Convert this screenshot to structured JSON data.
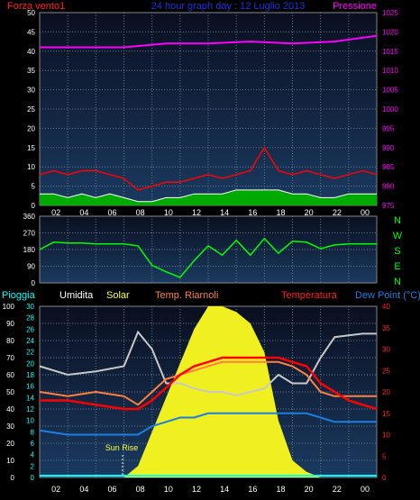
{
  "wind_panel": {
    "title_left": "Forza vento1",
    "title_center": "24 hour graph day : 12 Luglio 2013",
    "title_right": "Pressione"
  },
  "dir_panel": {
    "compass": [
      "N",
      "W",
      "S",
      "E",
      "N"
    ]
  },
  "weather_panel": {
    "legend": [
      "Pioggia",
      "Umidita",
      "Solar",
      "Temp. Riarnoli",
      "Temperatura",
      "Dew Point (°C)"
    ],
    "sunrise_label": "Sun Rise"
  },
  "x_ticks": [
    "02",
    "04",
    "06",
    "08",
    "10",
    "12",
    "14",
    "16",
    "18",
    "20",
    "22",
    "00"
  ],
  "colors": {
    "wind_avg": "#ffffff",
    "wind_gust": "#ff0000",
    "wind_fill": "#00aa00",
    "pressure": "#ff00ff",
    "direction": "#00ff00",
    "humidity": "#c8c8c8",
    "solar": "#f0f020",
    "temp_riarnoli": "#ff8040",
    "temperature": "#ff0000",
    "dew_point": "#1e7ee0",
    "rain": "#00ffff"
  },
  "chart_data": [
    {
      "type": "line",
      "name": "wind-pressure",
      "x_range": [
        0,
        24
      ],
      "y_left": {
        "range": [
          0,
          50
        ],
        "ticks": [
          "0",
          "5",
          "10",
          "15",
          "20",
          "25",
          "30",
          "35",
          "40",
          "45",
          "50"
        ]
      },
      "y_right": {
        "range": [
          975,
          1025
        ],
        "ticks": [
          "975",
          "980",
          "985",
          "990",
          "995",
          "1000",
          "1005",
          "1010",
          "1015",
          "1020",
          "1025"
        ]
      },
      "series": [
        {
          "x": [
            0,
            3,
            6,
            9,
            12,
            15,
            18,
            21,
            24
          ],
          "values": [
            1016,
            1016,
            1016,
            1017,
            1017,
            1017.5,
            1017,
            1017.5,
            1019
          ]
        },
        {
          "x": [
            0,
            1,
            2,
            3,
            4,
            5,
            6,
            7,
            8,
            9,
            10,
            11,
            12,
            13,
            14,
            15,
            16,
            17,
            18,
            19,
            20,
            21,
            22,
            23,
            24
          ],
          "values": [
            3,
            3,
            2,
            3,
            2,
            3,
            2,
            1,
            1,
            2,
            2,
            3,
            3,
            3,
            4,
            4,
            4,
            4,
            3,
            3,
            2,
            2,
            3,
            3,
            3
          ]
        },
        {
          "x": [
            0,
            1,
            2,
            3,
            4,
            5,
            6,
            7,
            8,
            9,
            10,
            11,
            12,
            13,
            14,
            15,
            16,
            17,
            18,
            19,
            20,
            21,
            22,
            23,
            24
          ],
          "values": [
            8,
            9,
            8,
            9,
            9,
            8,
            7,
            4,
            5,
            6,
            6,
            7,
            8,
            7,
            8,
            9,
            15,
            9,
            8,
            9,
            8,
            7,
            8,
            9,
            8
          ]
        }
      ]
    },
    {
      "type": "line",
      "name": "wind-direction",
      "x_range": [
        0,
        24
      ],
      "y_left": {
        "range": [
          0,
          360
        ],
        "ticks": [
          "0",
          "90",
          "180",
          "270",
          "360"
        ]
      },
      "series": [
        {
          "x": [
            0,
            1,
            2,
            3,
            4,
            5,
            6,
            7,
            8,
            9,
            10,
            11,
            12,
            13,
            14,
            15,
            16,
            17,
            18,
            19,
            20,
            21,
            22,
            23,
            24
          ],
          "values": [
            180,
            220,
            215,
            215,
            210,
            210,
            210,
            200,
            95,
            60,
            30,
            120,
            200,
            150,
            230,
            150,
            240,
            160,
            225,
            220,
            185,
            205,
            210,
            210,
            210
          ]
        }
      ]
    },
    {
      "type": "line",
      "name": "weather",
      "x_range": [
        0,
        24
      ],
      "y_left_outer": {
        "range": [
          0,
          100
        ],
        "ticks": [
          "0",
          "10",
          "20",
          "30",
          "40",
          "50",
          "60",
          "70",
          "80",
          "90",
          "100"
        ]
      },
      "y_left_inner": {
        "range": [
          0,
          30
        ],
        "ticks": [
          "0",
          "2",
          "4",
          "6",
          "8",
          "10",
          "12",
          "14",
          "16",
          "18",
          "20",
          "22",
          "24",
          "26",
          "28",
          "30"
        ]
      },
      "y_right": {
        "range": [
          0,
          40
        ],
        "ticks": [
          "0",
          "5",
          "10",
          "15",
          "20",
          "25",
          "30",
          "35",
          "40"
        ]
      },
      "series": [
        {
          "x": [
            0,
            2,
            4,
            6,
            7,
            8,
            9,
            10,
            11,
            12,
            13,
            14,
            15,
            16,
            17,
            18,
            19,
            20,
            21,
            22,
            23,
            24
          ],
          "values": [
            65,
            60,
            62,
            65,
            85,
            75,
            55,
            55,
            52,
            50,
            50,
            48,
            50,
            52,
            60,
            55,
            55,
            70,
            82,
            83,
            84,
            84
          ]
        },
        {
          "x": [
            0,
            2,
            4,
            6,
            7,
            8,
            9,
            10,
            11,
            12,
            13,
            14,
            15,
            16,
            17,
            18,
            19,
            20,
            21,
            22,
            23,
            24
          ],
          "values": [
            0,
            0,
            0,
            0,
            2,
            8,
            14,
            20,
            26,
            30,
            30,
            29,
            27,
            22,
            10,
            3,
            1,
            0,
            0,
            0,
            0,
            0
          ]
        },
        {
          "x": [
            0,
            2,
            4,
            6,
            7,
            8,
            9,
            10,
            11,
            12,
            13,
            14,
            15,
            16,
            17,
            18,
            19,
            20,
            21,
            22,
            23,
            24
          ],
          "values": [
            20,
            19,
            20,
            19,
            17,
            20,
            23,
            24,
            25,
            26,
            27,
            27,
            27,
            27,
            27,
            26,
            24,
            20,
            19,
            19,
            19,
            19
          ]
        },
        {
          "x": [
            0,
            2,
            4,
            6,
            7,
            8,
            9,
            10,
            11,
            12,
            13,
            14,
            15,
            16,
            17,
            18,
            19,
            20,
            21,
            22,
            23,
            24
          ],
          "values": [
            18,
            18,
            17,
            16,
            16,
            18,
            21,
            24,
            26,
            27,
            28,
            28,
            28,
            28,
            28,
            27,
            26,
            22,
            20,
            18,
            17,
            16
          ]
        },
        {
          "x": [
            0,
            2,
            4,
            6,
            7,
            8,
            9,
            10,
            11,
            12,
            13,
            14,
            15,
            16,
            17,
            18,
            19,
            20,
            21,
            22,
            23,
            24
          ],
          "values": [
            11,
            10,
            10,
            10,
            10,
            12,
            13,
            14,
            14,
            15,
            15,
            15,
            15,
            15,
            15,
            15,
            15,
            14,
            13,
            13,
            13,
            13
          ]
        },
        {
          "x": [
            0,
            24
          ],
          "values": [
            0,
            0
          ]
        }
      ]
    }
  ]
}
